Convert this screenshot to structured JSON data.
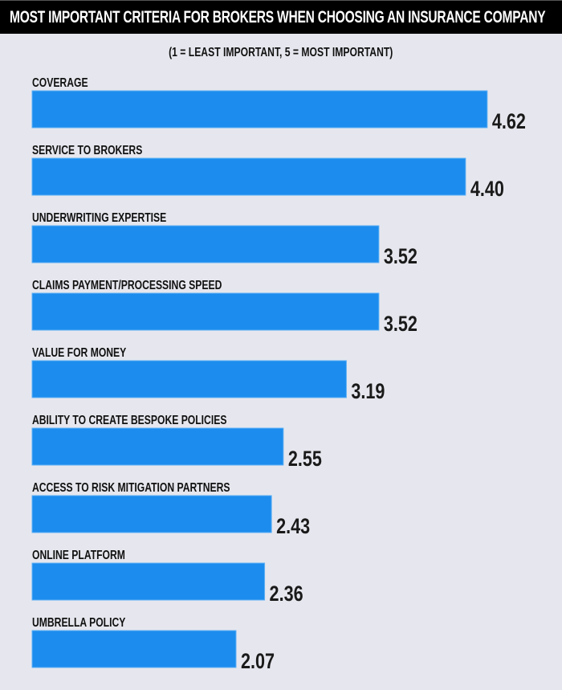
{
  "chart_data": {
    "type": "bar",
    "orientation": "horizontal",
    "title": "MOST IMPORTANT CRITERIA FOR BROKERS WHEN CHOOSING AN INSURANCE COMPANY",
    "subtitle": "(1 = LEAST IMPORTANT, 5 = MOST IMPORTANT)",
    "categories": [
      "COVERAGE",
      "SERVICE TO BROKERS",
      "UNDERWRITING EXPERTISE",
      "CLAIMS PAYMENT/PROCESSING SPEED",
      "VALUE FOR MONEY",
      "ABILITY TO CREATE BESPOKE POLICIES",
      "ACCESS TO RISK MITIGATION PARTNERS",
      "ONLINE PLATFORM",
      "UMBRELLA POLICY"
    ],
    "values": [
      4.62,
      4.4,
      3.52,
      3.52,
      3.19,
      2.55,
      2.43,
      2.36,
      2.07
    ],
    "value_labels": [
      "4.62",
      "4.40",
      "3.52",
      "3.52",
      "3.19",
      "2.55",
      "2.43",
      "2.36",
      "2.07"
    ],
    "xlim": [
      0,
      5
    ],
    "grid": false,
    "colors": {
      "bar": "#1c8dee",
      "background": "#e6e7ee",
      "title_bar": "#000000"
    }
  }
}
